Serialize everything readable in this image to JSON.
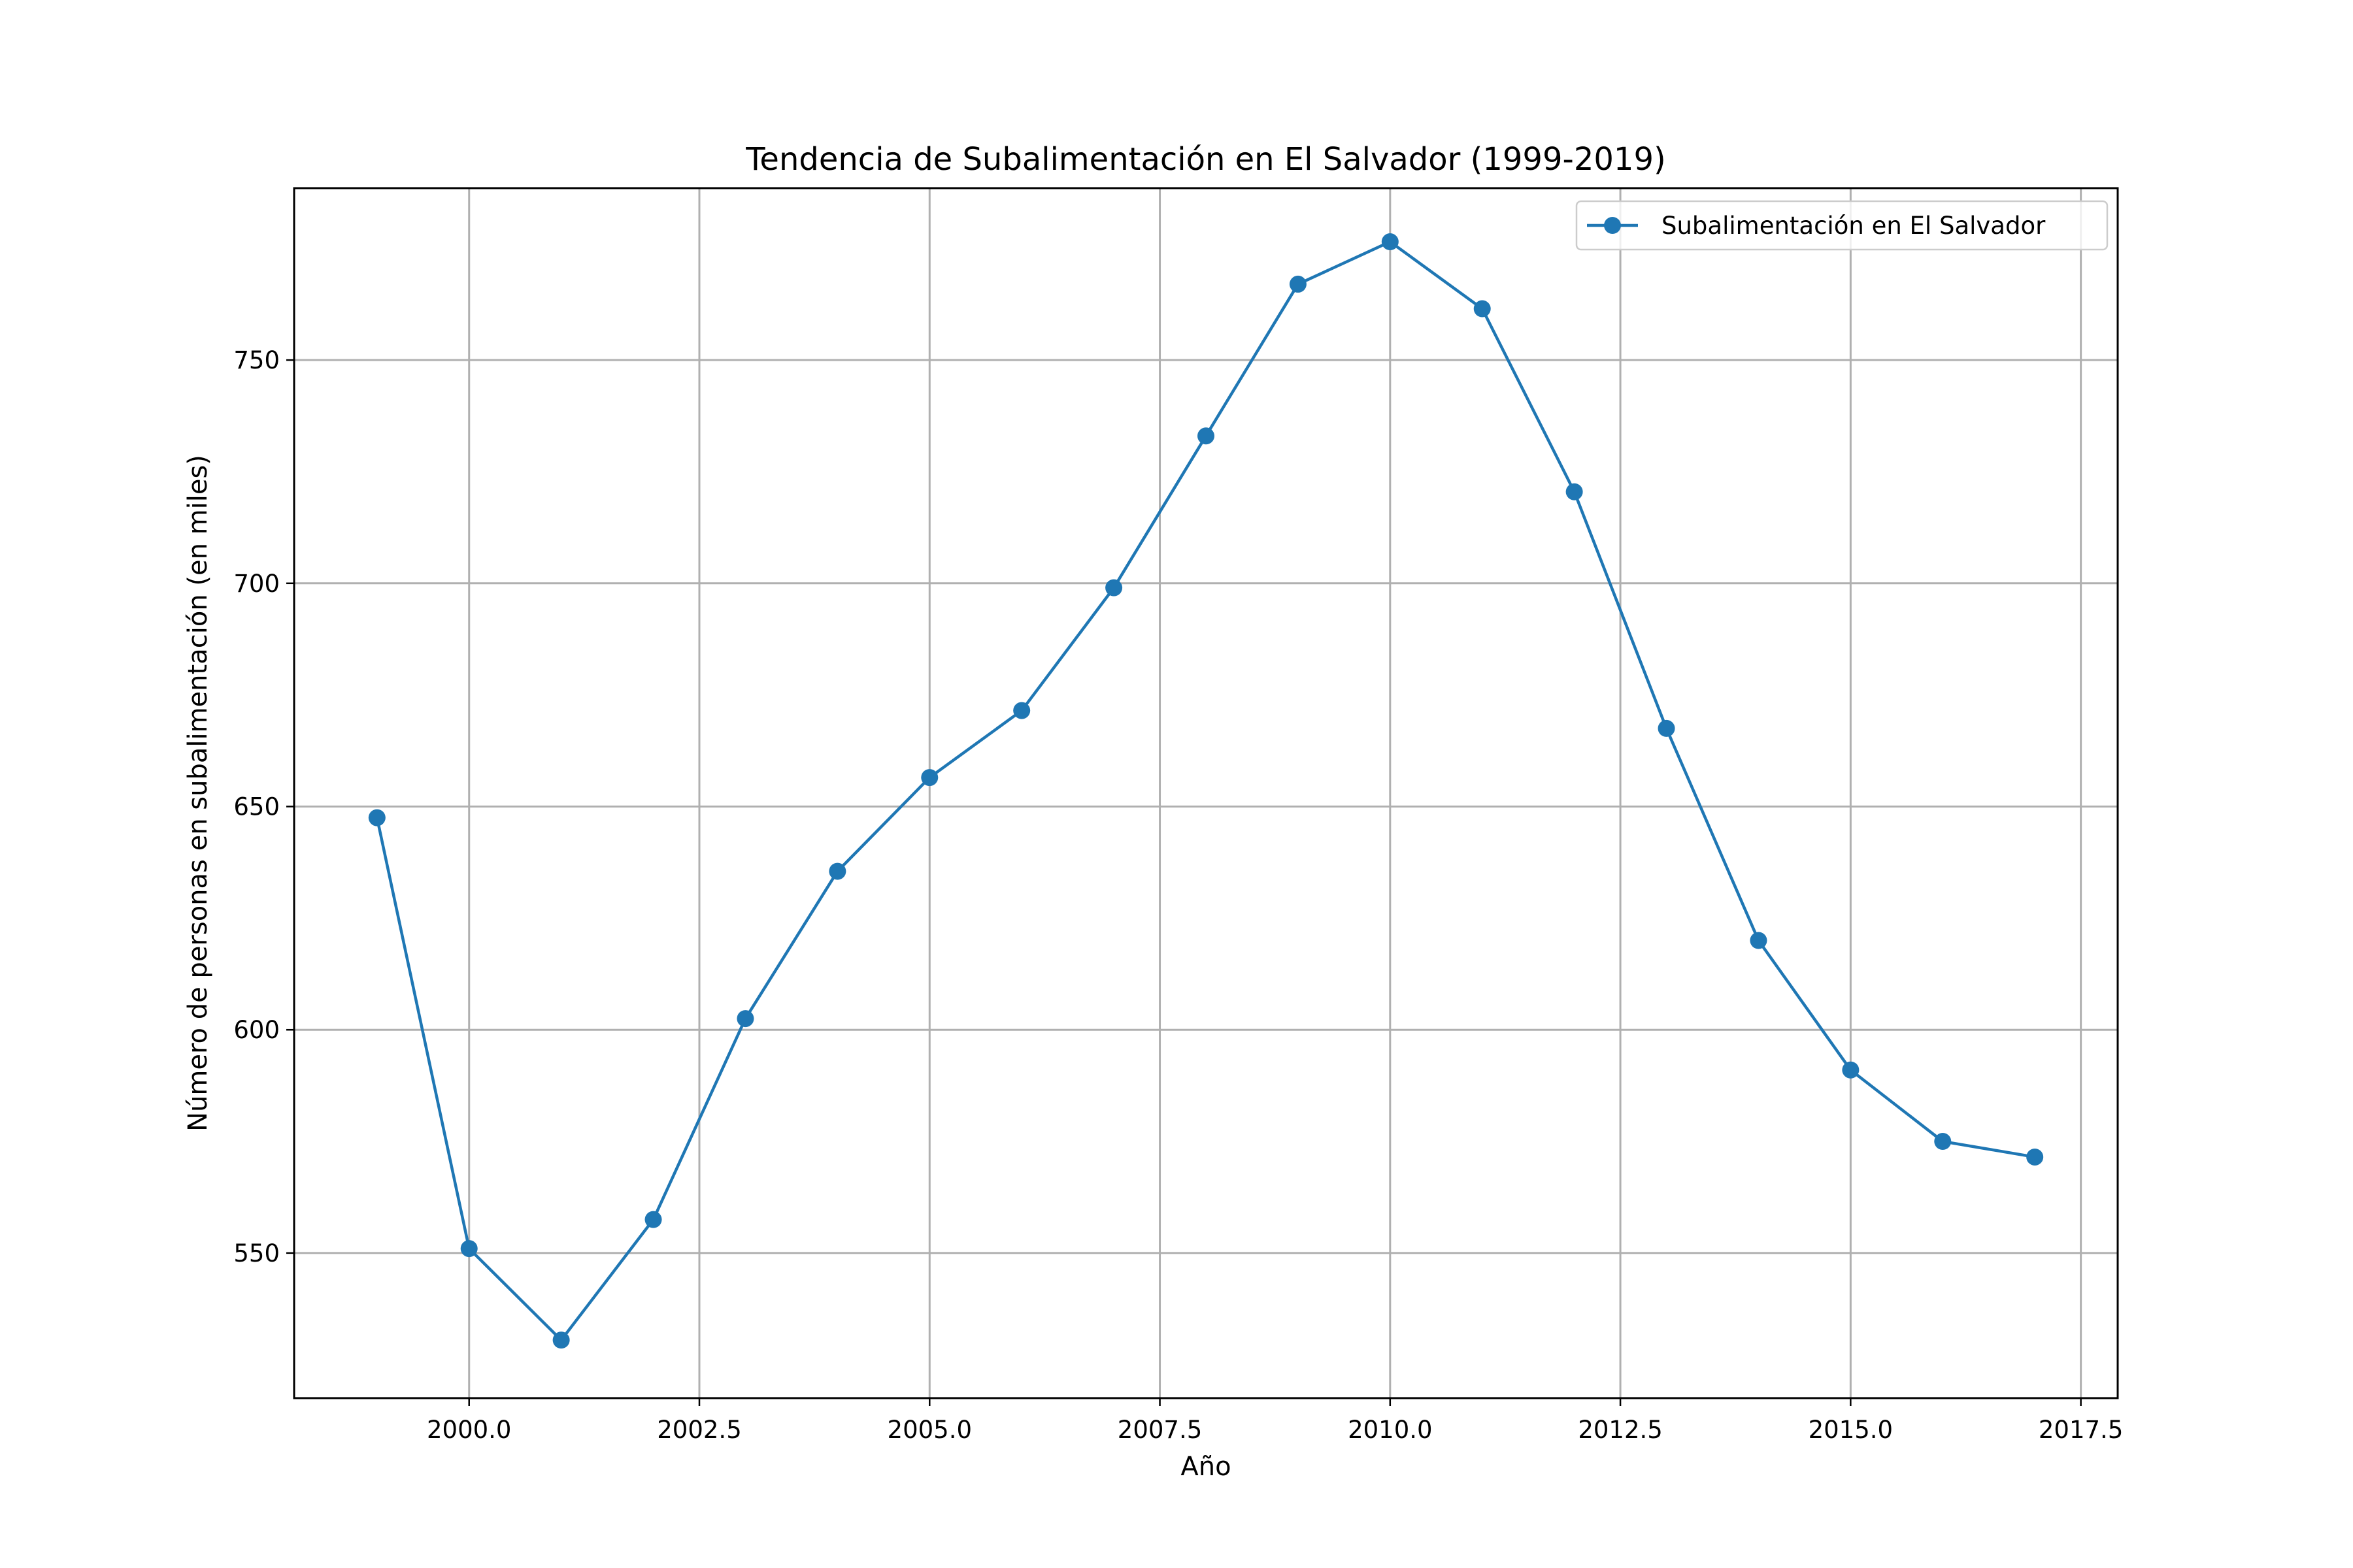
{
  "chart_data": {
    "type": "line",
    "title": "Tendencia de Subalimentación en El Salvador (1999-2019)",
    "xlabel": "Año",
    "ylabel": "Número de personas en subalimentación (en miles)",
    "xlim": [
      1998.1,
      2017.9
    ],
    "ylim": [
      517.5,
      788.5
    ],
    "xticks": [
      2000.0,
      2002.5,
      2005.0,
      2007.5,
      2010.0,
      2012.5,
      2015.0,
      2017.5
    ],
    "xtick_labels": [
      "2000.0",
      "2002.5",
      "2005.0",
      "2007.5",
      "2010.0",
      "2012.5",
      "2015.0",
      "2017.5"
    ],
    "yticks": [
      550,
      600,
      650,
      700,
      750
    ],
    "ytick_labels": [
      "550",
      "600",
      "650",
      "700",
      "750"
    ],
    "grid": true,
    "legend_position": "top-right",
    "series": [
      {
        "name": "Subalimentación en El Salvador",
        "color": "#1f77b4",
        "marker": "circle",
        "x": [
          1999,
          2000,
          2001,
          2002,
          2003,
          2004,
          2005,
          2006,
          2007,
          2008,
          2009,
          2010,
          2011,
          2012,
          2013,
          2014,
          2015,
          2016,
          2017
        ],
        "y": [
          647.5,
          551.0,
          530.5,
          557.5,
          602.5,
          635.5,
          656.5,
          671.5,
          699.0,
          733.0,
          767.0,
          776.5,
          761.5,
          720.5,
          667.5,
          620.0,
          591.0,
          575.0,
          571.5
        ]
      }
    ]
  }
}
